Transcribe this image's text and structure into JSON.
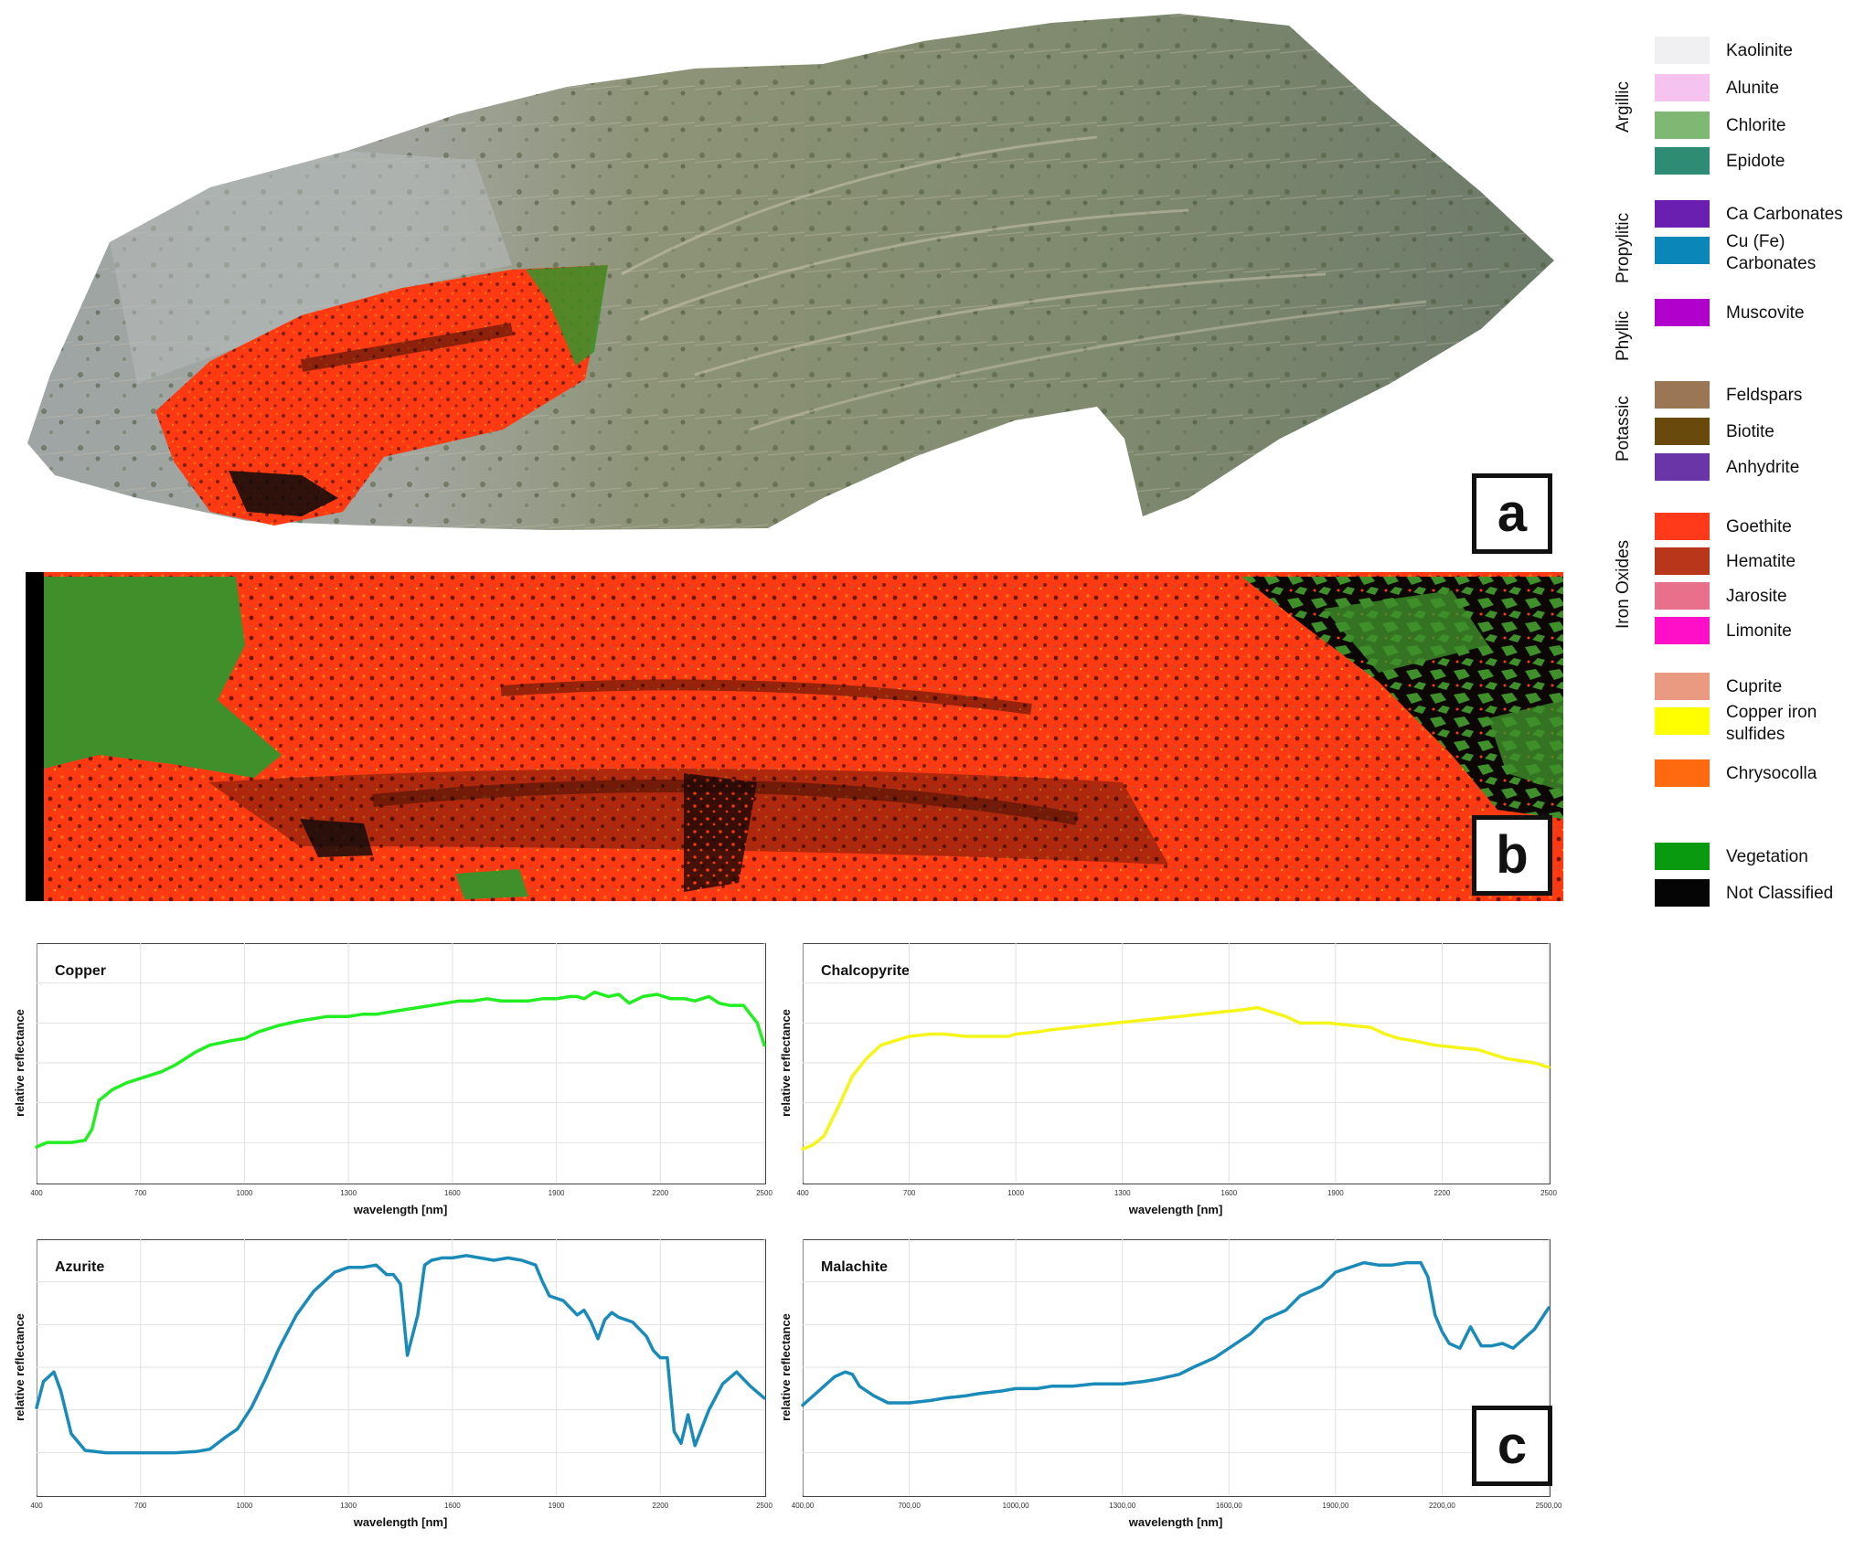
{
  "panels": {
    "a_label": "a",
    "b_label": "b",
    "c_label": "c"
  },
  "colors": {
    "goethite_red": "#ff3a12",
    "vegetation_green": "#3f8f2a",
    "copper_line": "#22ee22",
    "chalcopyrite_line": "#f5f51a",
    "azurite_line": "#1a8ab8",
    "malachite_line": "#1a8ab8"
  },
  "legend": {
    "groups": [
      {
        "label": "Argillic"
      },
      {
        "label": "Propylitic"
      },
      {
        "label": "Phyllic"
      },
      {
        "label": "Potassic"
      },
      {
        "label": "Iron Oxides"
      }
    ],
    "items": [
      {
        "label": "Kaolinite",
        "color": "#f0eff1"
      },
      {
        "label": "Alunite",
        "color": "#f6c3ef"
      },
      {
        "label": "Chlorite",
        "color": "#7fb872"
      },
      {
        "label": "Epidote",
        "color": "#2e8b74"
      },
      {
        "label": "Ca Carbonates",
        "color": "#6a1fb0"
      },
      {
        "label": "Cu (Fe)\nCarbonates",
        "color": "#0a86b8"
      },
      {
        "label": "Muscovite",
        "color": "#b200cc"
      },
      {
        "label": "Feldspars",
        "color": "#9a7655"
      },
      {
        "label": "Biotite",
        "color": "#6a4a0c"
      },
      {
        "label": "Anhydrite",
        "color": "#6a35a6"
      },
      {
        "label": "Goethite",
        "color": "#ff3a1a"
      },
      {
        "label": "Hematite",
        "color": "#b8361a"
      },
      {
        "label": "Jarosite",
        "color": "#e8708a"
      },
      {
        "label": "Limonite",
        "color": "#ff10c8"
      },
      {
        "label": "Cuprite",
        "color": "#e99a80"
      },
      {
        "label": "Copper iron\nsulfides",
        "color": "#ffff00"
      },
      {
        "label": "Chrysocolla",
        "color": "#ff6a10"
      },
      {
        "label": "Vegetation",
        "color": "#0a9a10"
      },
      {
        "label": "Not Classified",
        "color": "#050505"
      }
    ]
  },
  "chart_data": [
    {
      "type": "line",
      "title": "Copper",
      "xlabel": "wavelength [nm]",
      "ylabel": "relative reflectance",
      "xticks": [
        "400",
        "700",
        "1000",
        "1300",
        "1600",
        "1900",
        "2200",
        "2500"
      ],
      "xlim": [
        400,
        2500
      ],
      "ylim": [
        0,
        1
      ],
      "grid": true,
      "series": [
        {
          "color": "#22ee22",
          "x": [
            400,
            430,
            460,
            500,
            540,
            560,
            580,
            620,
            660,
            700,
            760,
            800,
            860,
            900,
            960,
            1000,
            1040,
            1100,
            1160,
            1240,
            1300,
            1340,
            1380,
            1420,
            1460,
            1500,
            1540,
            1580,
            1620,
            1660,
            1700,
            1740,
            1780,
            1820,
            1860,
            1900,
            1940,
            1960,
            1980,
            2010,
            2050,
            2080,
            2110,
            2150,
            2190,
            2230,
            2270,
            2300,
            2340,
            2370,
            2400,
            2440,
            2480,
            2500
          ],
          "y": [
            0.12,
            0.14,
            0.14,
            0.14,
            0.15,
            0.2,
            0.33,
            0.38,
            0.41,
            0.43,
            0.46,
            0.49,
            0.55,
            0.58,
            0.6,
            0.61,
            0.64,
            0.67,
            0.69,
            0.71,
            0.71,
            0.72,
            0.72,
            0.73,
            0.74,
            0.75,
            0.76,
            0.77,
            0.78,
            0.78,
            0.79,
            0.78,
            0.78,
            0.78,
            0.79,
            0.79,
            0.8,
            0.8,
            0.79,
            0.82,
            0.8,
            0.81,
            0.77,
            0.8,
            0.81,
            0.79,
            0.79,
            0.78,
            0.8,
            0.77,
            0.76,
            0.76,
            0.68,
            0.58
          ]
        }
      ]
    },
    {
      "type": "line",
      "title": "Chalcopyrite",
      "xlabel": "wavelength [nm]",
      "ylabel": "relative reflectance",
      "xticks": [
        "400",
        "700",
        "1000",
        "1300",
        "1600",
        "1900",
        "2200",
        "2500"
      ],
      "xlim": [
        400,
        2500
      ],
      "ylim": [
        0,
        1
      ],
      "grid": true,
      "series": [
        {
          "color": "#f5f51a",
          "x": [
            400,
            430,
            460,
            500,
            540,
            580,
            620,
            660,
            700,
            760,
            800,
            860,
            920,
            980,
            1000,
            1060,
            1100,
            1160,
            1220,
            1280,
            1340,
            1400,
            1460,
            1520,
            1580,
            1640,
            1680,
            1700,
            1760,
            1800,
            1880,
            1940,
            2000,
            2040,
            2080,
            2120,
            2180,
            2240,
            2300,
            2340,
            2380,
            2420,
            2460,
            2500
          ],
          "y": [
            0.11,
            0.13,
            0.17,
            0.3,
            0.44,
            0.52,
            0.58,
            0.6,
            0.62,
            0.63,
            0.63,
            0.62,
            0.62,
            0.62,
            0.63,
            0.64,
            0.65,
            0.66,
            0.67,
            0.68,
            0.69,
            0.7,
            0.71,
            0.72,
            0.73,
            0.74,
            0.75,
            0.74,
            0.71,
            0.68,
            0.68,
            0.67,
            0.66,
            0.63,
            0.61,
            0.6,
            0.58,
            0.57,
            0.56,
            0.54,
            0.52,
            0.51,
            0.5,
            0.48
          ]
        }
      ]
    },
    {
      "type": "line",
      "title": "Azurite",
      "xlabel": "wavelength [nm]",
      "ylabel": "relative reflectance",
      "xticks": [
        "400",
        "700",
        "1000",
        "1300",
        "1600",
        "1900",
        "2200",
        "2500"
      ],
      "xlim": [
        400,
        2500
      ],
      "ylim": [
        0,
        1
      ],
      "grid": true,
      "series": [
        {
          "color": "#1a8ab8",
          "x": [
            400,
            420,
            450,
            470,
            500,
            540,
            600,
            700,
            800,
            860,
            900,
            940,
            980,
            1020,
            1060,
            1100,
            1150,
            1200,
            1260,
            1300,
            1340,
            1380,
            1410,
            1430,
            1450,
            1470,
            1500,
            1520,
            1540,
            1570,
            1600,
            1640,
            1680,
            1720,
            1760,
            1800,
            1840,
            1860,
            1880,
            1920,
            1960,
            1980,
            2000,
            2020,
            2040,
            2060,
            2080,
            2120,
            2160,
            2180,
            2200,
            2220,
            2240,
            2260,
            2280,
            2300,
            2340,
            2380,
            2420,
            2460,
            2500
          ],
          "y": [
            0.33,
            0.44,
            0.48,
            0.4,
            0.22,
            0.15,
            0.14,
            0.14,
            0.14,
            0.145,
            0.155,
            0.2,
            0.24,
            0.33,
            0.45,
            0.58,
            0.72,
            0.82,
            0.9,
            0.92,
            0.92,
            0.93,
            0.89,
            0.89,
            0.85,
            0.55,
            0.72,
            0.93,
            0.95,
            0.96,
            0.96,
            0.97,
            0.96,
            0.95,
            0.96,
            0.95,
            0.93,
            0.86,
            0.8,
            0.78,
            0.72,
            0.74,
            0.69,
            0.62,
            0.7,
            0.73,
            0.71,
            0.69,
            0.63,
            0.57,
            0.54,
            0.54,
            0.23,
            0.18,
            0.3,
            0.17,
            0.32,
            0.43,
            0.48,
            0.42,
            0.37
          ]
        }
      ]
    },
    {
      "type": "line",
      "title": "Malachite",
      "xlabel": "wavelength [nm]",
      "ylabel": "relative reflectance",
      "xticks": [
        "400,00",
        "700,00",
        "1000,00",
        "1300,00",
        "1600,00",
        "1900,00",
        "2200,00",
        "2500,00"
      ],
      "xlim": [
        400,
        2500
      ],
      "ylim": [
        0,
        1
      ],
      "grid": true,
      "series": [
        {
          "color": "#1a8ab8",
          "x": [
            400,
            430,
            460,
            490,
            520,
            540,
            560,
            600,
            640,
            700,
            760,
            800,
            860,
            900,
            960,
            1000,
            1060,
            1100,
            1160,
            1220,
            1300,
            1360,
            1400,
            1460,
            1500,
            1560,
            1600,
            1660,
            1700,
            1760,
            1800,
            1860,
            1900,
            1940,
            1980,
            2020,
            2060,
            2100,
            2140,
            2160,
            2180,
            2200,
            2220,
            2250,
            2280,
            2310,
            2340,
            2370,
            2400,
            2430,
            2460,
            2500
          ],
          "y": [
            0.34,
            0.38,
            0.42,
            0.46,
            0.48,
            0.47,
            0.42,
            0.38,
            0.35,
            0.35,
            0.36,
            0.37,
            0.38,
            0.39,
            0.4,
            0.41,
            0.41,
            0.42,
            0.42,
            0.43,
            0.43,
            0.44,
            0.45,
            0.47,
            0.5,
            0.54,
            0.58,
            0.64,
            0.7,
            0.74,
            0.8,
            0.84,
            0.9,
            0.92,
            0.94,
            0.93,
            0.93,
            0.94,
            0.94,
            0.88,
            0.72,
            0.65,
            0.6,
            0.58,
            0.67,
            0.59,
            0.59,
            0.6,
            0.58,
            0.62,
            0.66,
            0.75
          ]
        }
      ]
    }
  ]
}
